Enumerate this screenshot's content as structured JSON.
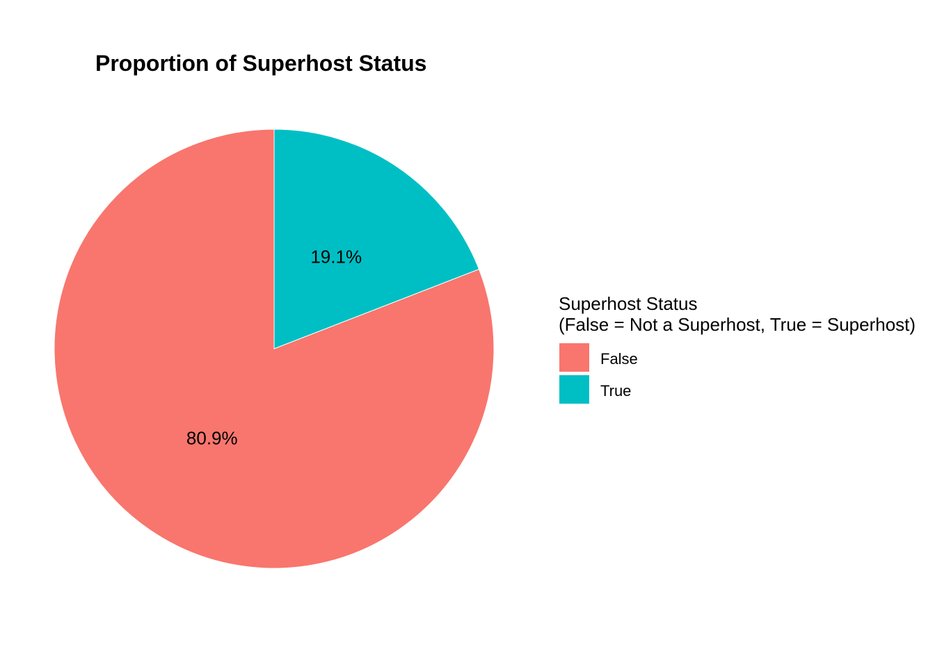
{
  "chart_data": {
    "type": "pie",
    "title": "Proportion of Superhost Status",
    "categories": [
      "False",
      "True"
    ],
    "values": [
      80.9,
      19.1
    ],
    "labels": [
      "80.9%",
      "19.1%"
    ],
    "colors": [
      "#F8766D",
      "#00BFC4"
    ],
    "legend": {
      "title_lines": [
        "Superhost Status",
        "(False = Not a Superhost, True = Superhost)"
      ],
      "entries": [
        "False",
        "True"
      ],
      "position": "right"
    }
  }
}
